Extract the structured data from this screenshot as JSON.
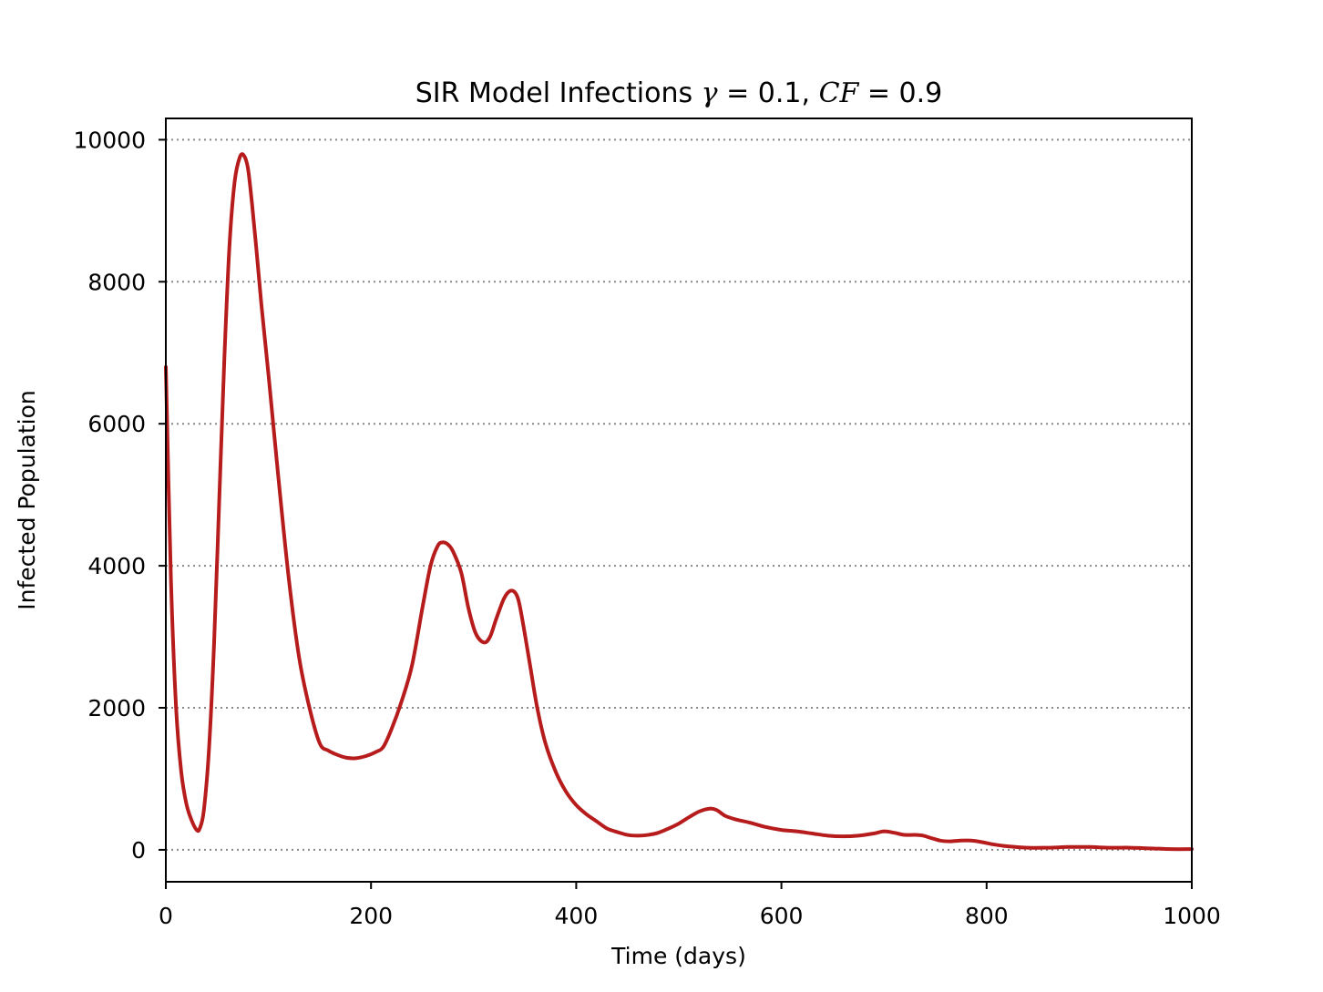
{
  "chart_data": {
    "type": "line",
    "title": {
      "prefix": "SIR Model Infections ",
      "gamma_symbol": "γ",
      "gamma_eq": " = 0.1, ",
      "cf_symbol": "CF",
      "cf_eq": " = 0.9"
    },
    "xlabel": "Time (days)",
    "ylabel": "Infected Population",
    "xlim": [
      0,
      1000
    ],
    "ylim": [
      -450,
      10300
    ],
    "xticks": [
      0,
      200,
      400,
      600,
      800,
      1000
    ],
    "yticks": [
      0,
      2000,
      4000,
      6000,
      8000,
      10000
    ],
    "xtick_labels": [
      "0",
      "200",
      "400",
      "600",
      "800",
      "1000"
    ],
    "ytick_labels": [
      "0",
      "2000",
      "4000",
      "6000",
      "8000",
      "10000"
    ],
    "grid": "horizontal dotted",
    "line_color": "#b71c1c",
    "grid_color": "#888888",
    "series": [
      {
        "x": [
          0,
          5,
          10,
          15,
          20,
          25,
          30,
          33,
          37,
          42,
          47,
          52,
          57,
          62,
          67,
          72,
          76,
          80,
          84,
          88,
          93,
          100,
          110,
          120,
          130,
          140,
          150,
          158,
          165,
          175,
          185,
          195,
          205,
          212,
          220,
          230,
          240,
          250,
          258,
          265,
          270,
          275,
          280,
          288,
          295,
          302,
          310,
          316,
          322,
          330,
          337,
          343,
          348,
          355,
          362,
          370,
          380,
          390,
          400,
          410,
          420,
          430,
          440,
          450,
          460,
          470,
          480,
          490,
          500,
          510,
          520,
          530,
          537,
          545,
          555,
          570,
          585,
          600,
          615,
          630,
          645,
          660,
          675,
          690,
          700,
          710,
          720,
          730,
          738,
          745,
          755,
          765,
          775,
          785,
          795,
          805,
          820,
          840,
          860,
          880,
          900,
          920,
          940,
          960,
          980,
          1000
        ],
        "y": [
          6800,
          3800,
          2000,
          1100,
          650,
          420,
          280,
          300,
          550,
          1400,
          2900,
          4900,
          6900,
          8500,
          9400,
          9750,
          9780,
          9600,
          9100,
          8500,
          7700,
          6700,
          5200,
          3800,
          2700,
          2000,
          1500,
          1400,
          1350,
          1300,
          1290,
          1320,
          1380,
          1450,
          1700,
          2100,
          2600,
          3400,
          4000,
          4280,
          4330,
          4300,
          4200,
          3900,
          3400,
          3050,
          2920,
          3000,
          3250,
          3550,
          3650,
          3550,
          3200,
          2600,
          2000,
          1500,
          1100,
          820,
          630,
          500,
          400,
          300,
          250,
          210,
          200,
          210,
          240,
          300,
          370,
          460,
          540,
          580,
          560,
          480,
          430,
          380,
          320,
          280,
          260,
          230,
          200,
          190,
          200,
          230,
          260,
          240,
          210,
          210,
          200,
          170,
          130,
          120,
          130,
          130,
          110,
          80,
          50,
          30,
          30,
          40,
          40,
          30,
          30,
          20,
          10,
          10
        ]
      }
    ]
  }
}
